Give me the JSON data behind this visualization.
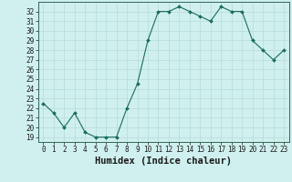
{
  "x": [
    0,
    1,
    2,
    3,
    4,
    5,
    6,
    7,
    8,
    9,
    10,
    11,
    12,
    13,
    14,
    15,
    16,
    17,
    18,
    19,
    20,
    21,
    22,
    23
  ],
  "y": [
    22.5,
    21.5,
    20.0,
    21.5,
    19.5,
    19.0,
    19.0,
    19.0,
    22.0,
    24.5,
    29.0,
    32.0,
    32.0,
    32.5,
    32.0,
    31.5,
    31.0,
    32.5,
    32.0,
    32.0,
    29.0,
    28.0,
    27.0,
    28.0
  ],
  "line_color": "#1a6b5a",
  "marker": "D",
  "marker_size": 2,
  "bg_color": "#cff0ee",
  "grid_color": "#b8dbd8",
  "xlabel": "Humidex (Indice chaleur)",
  "xlim": [
    -0.5,
    23.5
  ],
  "ylim": [
    18.5,
    33.0
  ],
  "yticks": [
    19,
    20,
    21,
    22,
    23,
    24,
    25,
    26,
    27,
    28,
    29,
    30,
    31,
    32
  ],
  "xticks": [
    0,
    1,
    2,
    3,
    4,
    5,
    6,
    7,
    8,
    9,
    10,
    11,
    12,
    13,
    14,
    15,
    16,
    17,
    18,
    19,
    20,
    21,
    22,
    23
  ],
  "tick_fontsize": 5.5,
  "xlabel_fontsize": 7.5,
  "label_color": "#1a1a1a",
  "spine_color": "#336655"
}
